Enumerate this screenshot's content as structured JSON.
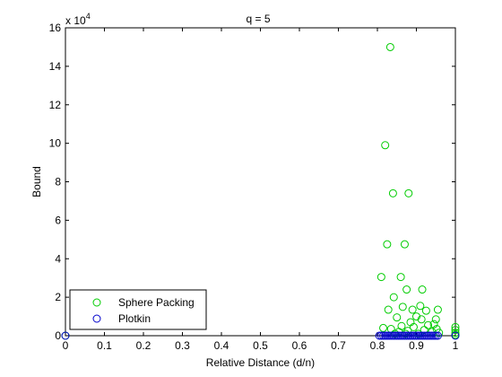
{
  "chart_data": {
    "type": "scatter",
    "title": "q = 5",
    "xlabel": "Relative Distance (d/n)",
    "ylabel": "Bound",
    "scale_factor_label": "x 10",
    "scale_factor_exponent": "4",
    "xlim": [
      0,
      1
    ],
    "ylim": [
      0,
      16
    ],
    "x_ticks": [
      0,
      0.1,
      0.2,
      0.3,
      0.4,
      0.5,
      0.6,
      0.7,
      0.8,
      0.9,
      1
    ],
    "x_tick_labels": [
      "0",
      "0.1",
      "0.2",
      "0.3",
      "0.4",
      "0.5",
      "0.6",
      "0.7",
      "0.8",
      "0.9",
      "1"
    ],
    "y_ticks": [
      0,
      2,
      4,
      6,
      8,
      10,
      12,
      14,
      16
    ],
    "y_tick_labels": [
      "0",
      "2",
      "4",
      "6",
      "8",
      "10",
      "12",
      "14",
      "16"
    ],
    "grid": false,
    "legend_position": "bottom-left",
    "series": [
      {
        "name": "Sphere Packing",
        "color": "#00cc00",
        "marker": "circle-open",
        "points": [
          [
            0,
            0
          ],
          [
            0.81,
            3.05
          ],
          [
            0.815,
            0.4
          ],
          [
            0.82,
            9.9
          ],
          [
            0.825,
            4.75
          ],
          [
            0.828,
            1.35
          ],
          [
            0.833,
            15.0
          ],
          [
            0.835,
            0.35
          ],
          [
            0.84,
            7.4
          ],
          [
            0.842,
            2.0
          ],
          [
            0.845,
            0.1
          ],
          [
            0.85,
            0.95
          ],
          [
            0.855,
            0.2
          ],
          [
            0.86,
            3.05
          ],
          [
            0.862,
            0.5
          ],
          [
            0.865,
            1.5
          ],
          [
            0.87,
            4.75
          ],
          [
            0.872,
            0.1
          ],
          [
            0.875,
            2.4
          ],
          [
            0.878,
            0.25
          ],
          [
            0.88,
            7.4
          ],
          [
            0.885,
            0.7
          ],
          [
            0.89,
            1.35
          ],
          [
            0.893,
            0.45
          ],
          [
            0.9,
            1.0
          ],
          [
            0.905,
            0.1
          ],
          [
            0.91,
            1.55
          ],
          [
            0.913,
            0.85
          ],
          [
            0.915,
            2.4
          ],
          [
            0.92,
            0.3
          ],
          [
            0.925,
            1.3
          ],
          [
            0.93,
            0.55
          ],
          [
            0.94,
            0.2
          ],
          [
            0.945,
            0.6
          ],
          [
            0.95,
            0.85
          ],
          [
            0.952,
            0.35
          ],
          [
            0.955,
            1.35
          ],
          [
            0.958,
            0.15
          ],
          [
            1.0,
            0.45
          ],
          [
            1.0,
            0.3
          ],
          [
            1.0,
            0.15
          ],
          [
            1.0,
            0.05
          ]
        ]
      },
      {
        "name": "Plotkin",
        "color": "#0000cc",
        "marker": "circle-open",
        "points": [
          [
            0,
            0
          ],
          [
            0.805,
            0
          ],
          [
            0.81,
            0
          ],
          [
            0.815,
            0
          ],
          [
            0.82,
            0
          ],
          [
            0.825,
            0
          ],
          [
            0.83,
            0
          ],
          [
            0.835,
            0
          ],
          [
            0.84,
            0
          ],
          [
            0.845,
            0
          ],
          [
            0.85,
            0
          ],
          [
            0.855,
            0
          ],
          [
            0.86,
            0
          ],
          [
            0.865,
            0
          ],
          [
            0.87,
            0
          ],
          [
            0.875,
            0
          ],
          [
            0.88,
            0
          ],
          [
            0.885,
            0
          ],
          [
            0.89,
            0
          ],
          [
            0.895,
            0
          ],
          [
            0.9,
            0
          ],
          [
            0.905,
            0
          ],
          [
            0.91,
            0
          ],
          [
            0.915,
            0
          ],
          [
            0.92,
            0
          ],
          [
            0.925,
            0
          ],
          [
            0.93,
            0
          ],
          [
            0.935,
            0
          ],
          [
            0.94,
            0
          ],
          [
            0.945,
            0
          ],
          [
            0.95,
            0
          ],
          [
            0.955,
            0
          ],
          [
            1.0,
            0
          ]
        ]
      }
    ]
  }
}
